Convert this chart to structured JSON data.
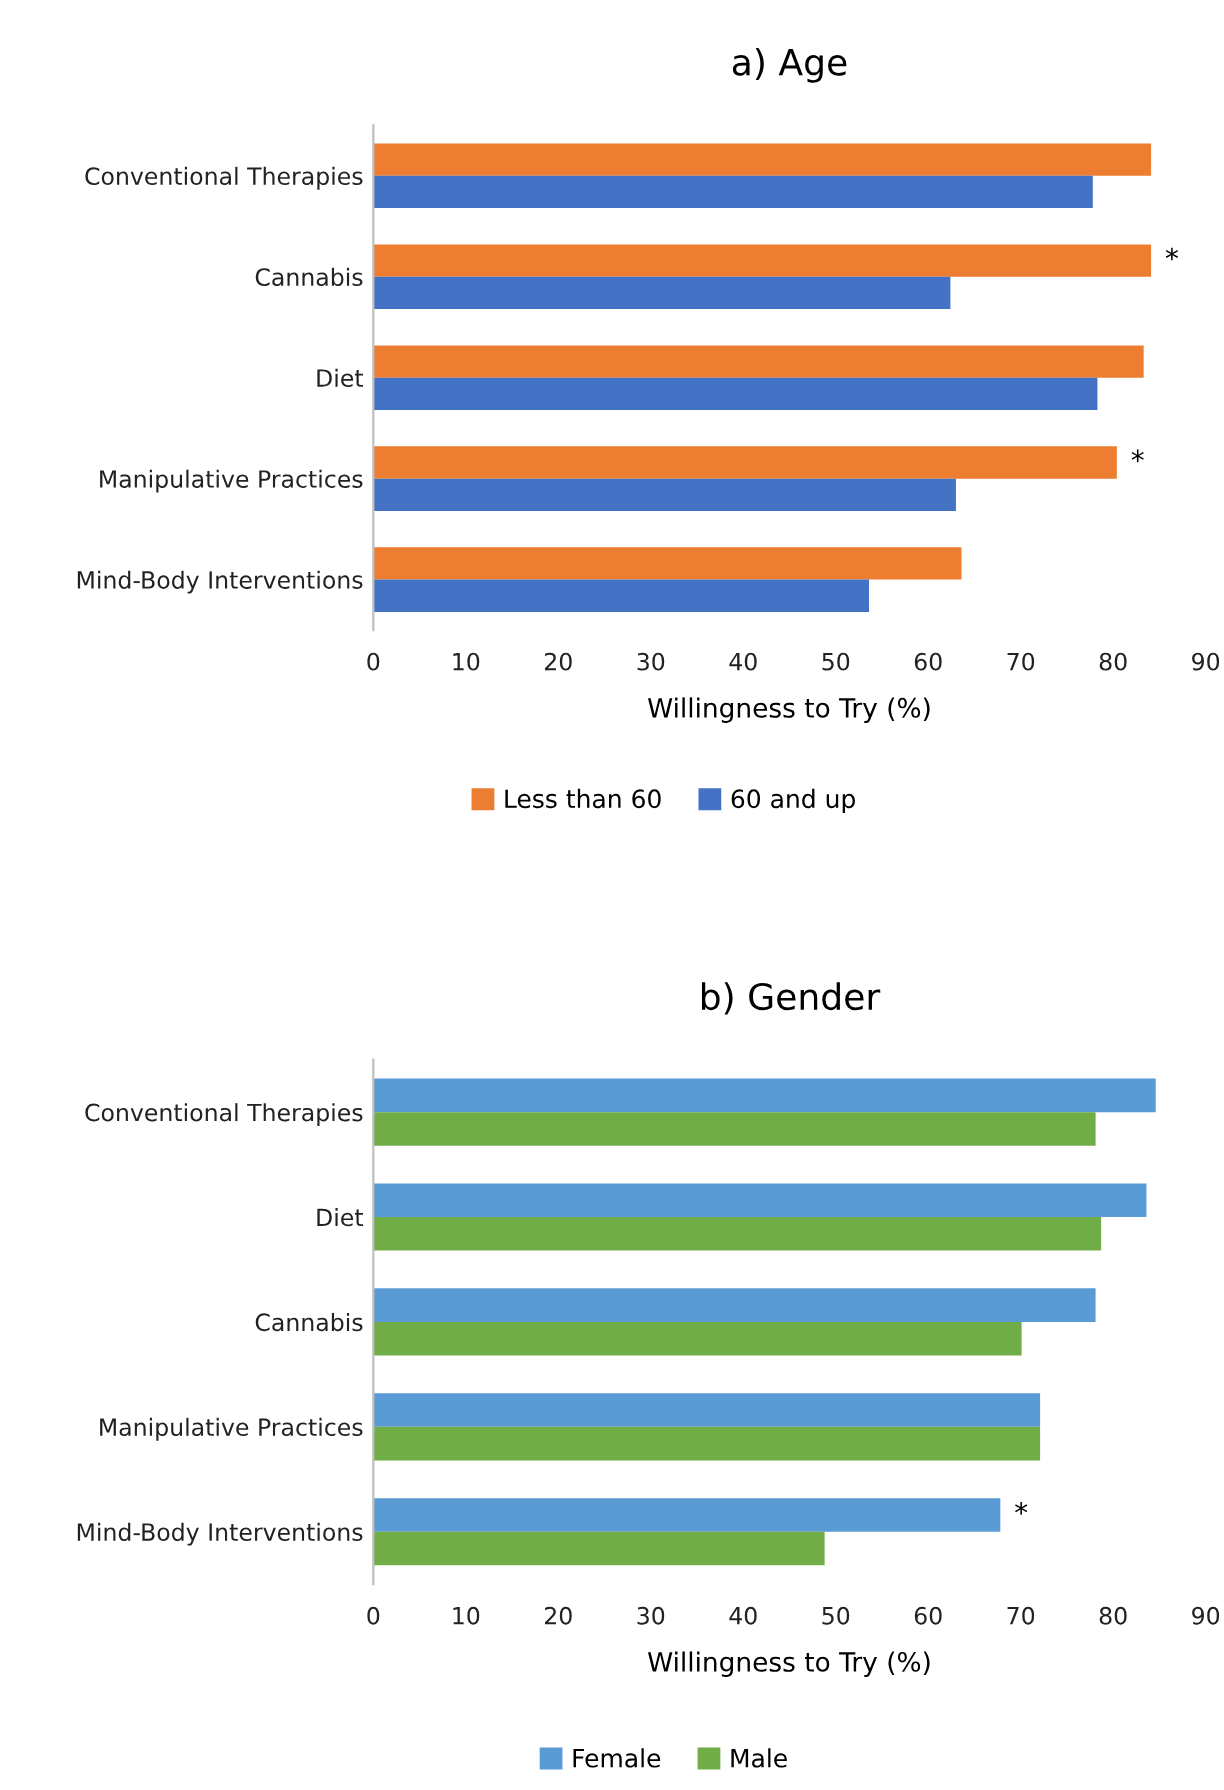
{
  "chart_data": [
    {
      "type": "bar",
      "orientation": "horizontal",
      "title": "a) Age",
      "xlabel": "Willingness to Try (%)",
      "categories": [
        "Conventional Therapies",
        "Cannabis",
        "Diet",
        "Manipulative Practices",
        "Mind-Body Interventions"
      ],
      "series": [
        {
          "name": "Less than 60",
          "color": "#ed7d31",
          "values": [
            84.1,
            84.1,
            83.3,
            80.4,
            63.6
          ]
        },
        {
          "name": "60 and up",
          "color": "#4472c4",
          "values": [
            77.8,
            62.4,
            78.3,
            63,
            53.6
          ]
        }
      ],
      "xlim": [
        0,
        90
      ],
      "xticks": [
        0,
        10,
        20,
        30,
        40,
        50,
        60,
        70,
        80,
        90
      ],
      "grid": false,
      "legend": "bottom",
      "annotations": [
        {
          "text": "*",
          "x": 84.1,
          "y": "Cannabis"
        },
        {
          "text": "*",
          "x": 80.4,
          "y": "Manipulative Practices"
        }
      ]
    },
    {
      "type": "bar",
      "orientation": "horizontal",
      "title": "b) Gender",
      "xlabel": "Willingness to Try (%)",
      "categories": [
        "Conventional Therapies",
        "Diet",
        "Cannabis",
        "Manipulative Practices",
        "Mind-Body Interventions"
      ],
      "series": [
        {
          "name": "Female",
          "color": "#5b9bd5",
          "values": [
            84.6,
            83.6,
            78.1,
            72.1,
            67.8
          ]
        },
        {
          "name": "Male",
          "color": "#70ad47",
          "values": [
            78.1,
            78.7,
            70.1,
            72.1,
            48.8
          ]
        }
      ],
      "xlim": [
        0,
        90
      ],
      "xticks": [
        0,
        10,
        20,
        30,
        40,
        50,
        60,
        70,
        80,
        90
      ],
      "grid": false,
      "legend": "bottom",
      "annotations": [
        {
          "text": "*",
          "x": 67.8,
          "y": "Mind-Body Interventions"
        }
      ]
    }
  ]
}
